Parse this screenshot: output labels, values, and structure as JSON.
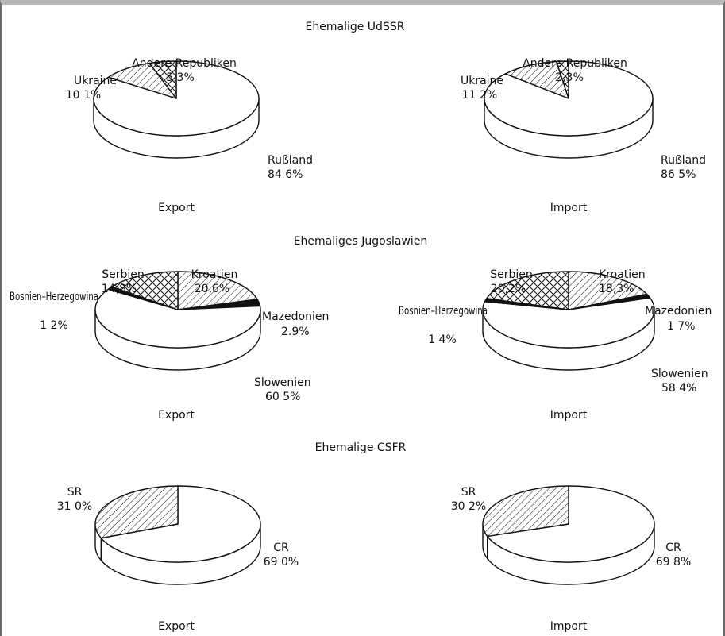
{
  "chart_data": [
    {
      "type": "pie",
      "group_title": "Ehemalige UdSSR",
      "panels": [
        {
          "caption": "Export",
          "slices": [
            {
              "label": "Rußland",
              "value": 84.6,
              "value_text": "84 6%",
              "pattern": "plain"
            },
            {
              "label": "Ukraine",
              "value": 10.1,
              "value_text": "10 1%",
              "pattern": "hatch"
            },
            {
              "label": "Andere Republiken",
              "value": 5.3,
              "value_text": "5,3%",
              "pattern": "cross"
            }
          ]
        },
        {
          "caption": "Import",
          "slices": [
            {
              "label": "Rußland",
              "value": 86.5,
              "value_text": "86 5%",
              "pattern": "plain"
            },
            {
              "label": "Ukraine",
              "value": 11.2,
              "value_text": "11 2%",
              "pattern": "hatch"
            },
            {
              "label": "Andere Republiken",
              "value": 2.3,
              "value_text": "2,3%",
              "pattern": "cross"
            }
          ]
        }
      ]
    },
    {
      "type": "pie",
      "group_title": "Ehemaliges Jugoslawien",
      "panels": [
        {
          "caption": "Export",
          "slices": [
            {
              "label": "Kroatien",
              "value": 20.6,
              "value_text": "20,6%",
              "pattern": "hatch"
            },
            {
              "label": "Mazedonien",
              "value": 2.9,
              "value_text": "2.9%",
              "pattern": "solid"
            },
            {
              "label": "Slowenien",
              "value": 60.5,
              "value_text": "60 5%",
              "pattern": "plain"
            },
            {
              "label": "Bosnien–Herzegowina",
              "value": 1.2,
              "value_text": "1 2%",
              "pattern": "solid"
            },
            {
              "label": "Serbien",
              "value": 14.8,
              "value_text": "14,8%",
              "pattern": "cross"
            }
          ]
        },
        {
          "caption": "Import",
          "slices": [
            {
              "label": "Kroatien",
              "value": 18.3,
              "value_text": "18,3%",
              "pattern": "hatch"
            },
            {
              "label": "Mazedonien",
              "value": 1.7,
              "value_text": "1 7%",
              "pattern": "solid"
            },
            {
              "label": "Slowenien",
              "value": 58.4,
              "value_text": "58 4%",
              "pattern": "plain"
            },
            {
              "label": "Bosnien–Herzegowina",
              "value": 1.4,
              "value_text": "1 4%",
              "pattern": "solid"
            },
            {
              "label": "Serbien",
              "value": 20.2,
              "value_text": "20,2%",
              "pattern": "cross"
            }
          ]
        }
      ]
    },
    {
      "type": "pie",
      "group_title": "Ehemalige CSFR",
      "panels": [
        {
          "caption": "Export",
          "slices": [
            {
              "label": "CR",
              "value": 69.0,
              "value_text": "69 0%",
              "pattern": "plain"
            },
            {
              "label": "SR",
              "value": 31.0,
              "value_text": "31 0%",
              "pattern": "hatch"
            }
          ]
        },
        {
          "caption": "Import",
          "slices": [
            {
              "label": "CR",
              "value": 69.8,
              "value_text": "69 8%",
              "pattern": "plain"
            },
            {
              "label": "SR",
              "value": 30.2,
              "value_text": "30 2%",
              "pattern": "hatch"
            }
          ]
        }
      ]
    }
  ]
}
